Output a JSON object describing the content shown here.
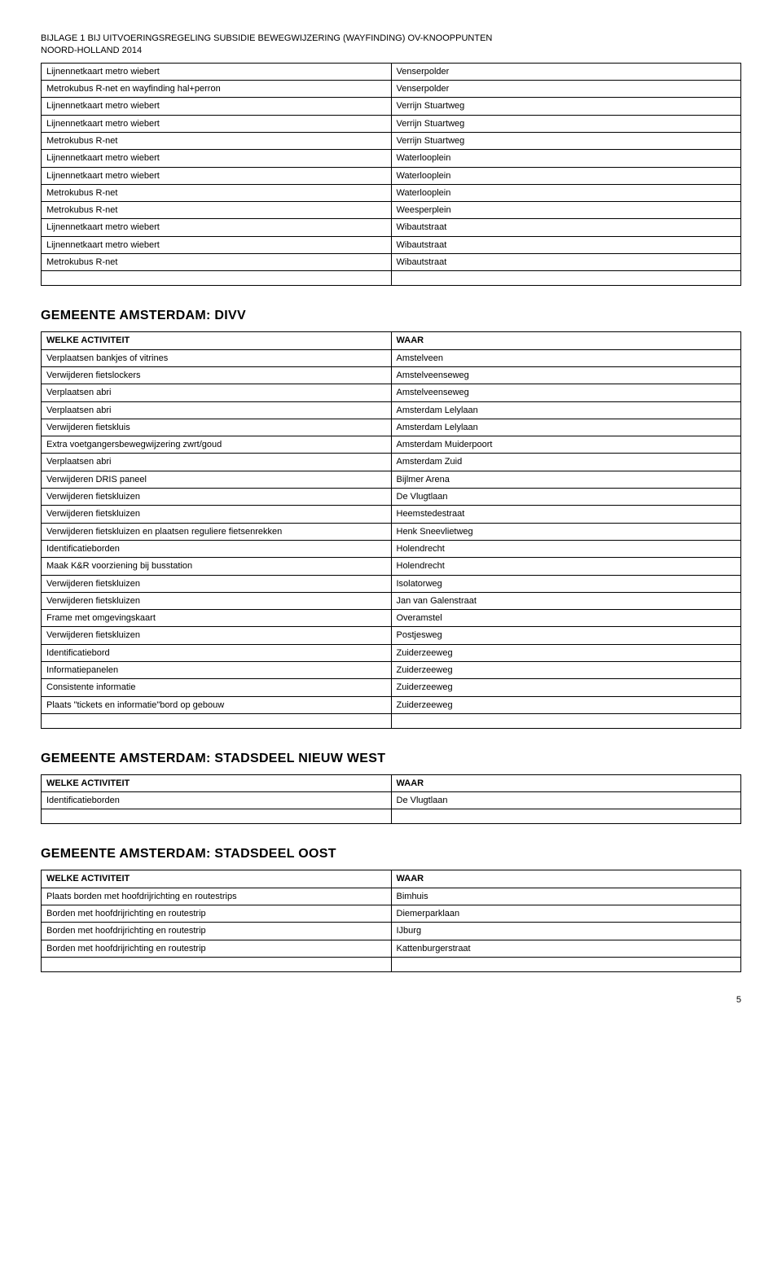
{
  "header": {
    "line1": "BIJLAGE 1 BIJ UITVOERINGSREGELING SUBSIDIE BEWEGWIJZERING (WAYFINDING) OV-KNOOPPUNTEN",
    "line2": "NOORD-HOLLAND 2014"
  },
  "topTable": {
    "rows": [
      [
        "Lijnennetkaart metro wiebert",
        "Venserpolder"
      ],
      [
        "Metrokubus R-net en wayfinding hal+perron",
        "Venserpolder"
      ],
      [
        "Lijnennetkaart metro wiebert",
        "Verrijn Stuartweg"
      ],
      [
        "Lijnennetkaart metro wiebert",
        "Verrijn Stuartweg"
      ],
      [
        "Metrokubus R-net",
        "Verrijn Stuartweg"
      ],
      [
        "Lijnennetkaart metro wiebert",
        "Waterlooplein"
      ],
      [
        "Lijnennetkaart metro wiebert",
        "Waterlooplein"
      ],
      [
        "Metrokubus R-net",
        "Waterlooplein"
      ],
      [
        "Metrokubus R-net",
        "Weesperplein"
      ],
      [
        "Lijnennetkaart metro wiebert",
        "Wibautstraat"
      ],
      [
        "Lijnennetkaart metro wiebert",
        "Wibautstraat"
      ],
      [
        "Metrokubus R-net",
        "Wibautstraat"
      ]
    ]
  },
  "sections": [
    {
      "title": "GEMEENTE AMSTERDAM: DIVV",
      "headers": [
        "WELKE ACTIVITEIT",
        "WAAR"
      ],
      "rows": [
        [
          "Verplaatsen bankjes of vitrines",
          "Amstelveen"
        ],
        [
          "Verwijderen fietslockers",
          "Amstelveenseweg"
        ],
        [
          "Verplaatsen abri",
          "Amstelveenseweg"
        ],
        [
          "Verplaatsen abri",
          "Amsterdam Lelylaan"
        ],
        [
          "Verwijderen fietskluis",
          "Amsterdam Lelylaan"
        ],
        [
          "Extra voetgangersbewegwijzering zwrt/goud",
          "Amsterdam Muiderpoort"
        ],
        [
          "Verplaatsen abri",
          "Amsterdam Zuid"
        ],
        [
          "Verwijderen DRIS paneel",
          "Bijlmer Arena"
        ],
        [
          "Verwijderen fietskluizen",
          "De Vlugtlaan"
        ],
        [
          "Verwijderen fietskluizen",
          "Heemstedestraat"
        ],
        [
          "Verwijderen fietskluizen en plaatsen reguliere fietsenrekken",
          "Henk Sneevlietweg"
        ],
        [
          "Identificatieborden",
          "Holendrecht"
        ],
        [
          "Maak K&R voorziening bij busstation",
          "Holendrecht"
        ],
        [
          "Verwijderen fietskluizen",
          "Isolatorweg"
        ],
        [
          "Verwijderen fietskluizen",
          "Jan van Galenstraat"
        ],
        [
          "Frame met omgevingskaart",
          "Overamstel"
        ],
        [
          "Verwijderen fietskluizen",
          "Postjesweg"
        ],
        [
          "Identificatiebord",
          "Zuiderzeeweg"
        ],
        [
          "Informatiepanelen",
          "Zuiderzeeweg"
        ],
        [
          "Consistente informatie",
          "Zuiderzeeweg"
        ],
        [
          "Plaats \"tickets en informatie\"bord op gebouw",
          "Zuiderzeeweg"
        ]
      ]
    },
    {
      "title": "GEMEENTE AMSTERDAM: STADSDEEL NIEUW WEST",
      "headers": [
        "WELKE ACTIVITEIT",
        "WAAR"
      ],
      "rows": [
        [
          "Identificatieborden",
          "De Vlugtlaan"
        ]
      ]
    },
    {
      "title": "GEMEENTE AMSTERDAM: STADSDEEL OOST",
      "headers": [
        "WELKE ACTIVITEIT",
        "WAAR"
      ],
      "rows": [
        [
          "Plaats borden met hoofdrijrichting en routestrips",
          "Bimhuis"
        ],
        [
          "Borden met hoofdrijrichting en routestrip",
          "Diemerparklaan"
        ],
        [
          "Borden met hoofdrijrichting en routestrip",
          "IJburg"
        ],
        [
          "Borden met hoofdrijrichting en routestrip",
          "Kattenburgerstraat"
        ]
      ]
    }
  ],
  "pageNumber": "5"
}
